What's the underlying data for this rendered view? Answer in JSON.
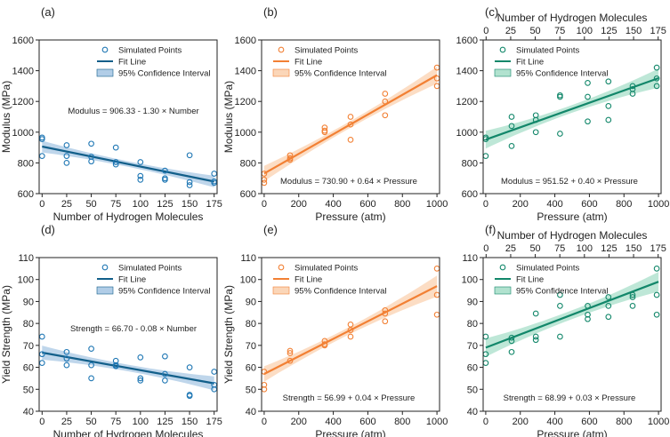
{
  "colors": {
    "blue": "#1f77b4",
    "blue_line": "#125f8a",
    "orange": "#f28034",
    "green": "#12876a",
    "blue_band": "#a9c8e4",
    "orange_band": "#fbd2b0",
    "green_band": "#a8dfca"
  },
  "legend": {
    "points": "Simulated Points",
    "line": "Fit Line",
    "ci": "95% Confidence Interval"
  },
  "chart_data": [
    {
      "panel": "(a)",
      "type": "scatter",
      "color_key": "blue",
      "xlabel": "Number of Hydrogen Molecules",
      "ylabel": "Modulus (MPa)",
      "xlim": [
        -3,
        178
      ],
      "xticks": [
        0,
        25,
        50,
        75,
        100,
        125,
        150,
        175
      ],
      "ylim": [
        600,
        1600
      ],
      "yticks": [
        600,
        800,
        1000,
        1200,
        1400,
        1600
      ],
      "equation": "Modulus = 906.33 - 1.30 × Number",
      "fit": {
        "intercept": 906.33,
        "slope": -1.3,
        "x0": 0,
        "x1": 175
      },
      "ci_half_width": [
        38,
        18,
        38
      ],
      "points": [
        [
          0,
          965
        ],
        [
          0,
          955
        ],
        [
          0,
          845
        ],
        [
          25,
          915
        ],
        [
          25,
          845
        ],
        [
          25,
          800
        ],
        [
          50,
          925
        ],
        [
          50,
          840
        ],
        [
          50,
          810
        ],
        [
          75,
          900
        ],
        [
          75,
          805
        ],
        [
          75,
          790
        ],
        [
          100,
          805
        ],
        [
          100,
          715
        ],
        [
          100,
          690
        ],
        [
          125,
          750
        ],
        [
          125,
          700
        ],
        [
          125,
          690
        ],
        [
          150,
          850
        ],
        [
          150,
          675
        ],
        [
          150,
          655
        ],
        [
          175,
          730
        ],
        [
          175,
          680
        ],
        [
          175,
          670
        ]
      ],
      "legend_pos": "top-right"
    },
    {
      "panel": "(b)",
      "type": "scatter",
      "color_key": "orange",
      "xlabel": "Pressure (atm)",
      "ylabel": "Modulus (MPa)",
      "xlim": [
        -15,
        1015
      ],
      "xticks": [
        0,
        200,
        400,
        600,
        800,
        1000
      ],
      "ylim": [
        600,
        1600
      ],
      "yticks": [
        600,
        800,
        1000,
        1200,
        1400,
        1600
      ],
      "equation": "Modulus = 730.90 + 0.64 × Pressure",
      "fit": {
        "intercept": 730.9,
        "slope": 0.64,
        "x0": 0,
        "x1": 1000
      },
      "ci_half_width": [
        50,
        22,
        55
      ],
      "points": [
        [
          0,
          730
        ],
        [
          0,
          690
        ],
        [
          0,
          670
        ],
        [
          150,
          850
        ],
        [
          150,
          830
        ],
        [
          150,
          820
        ],
        [
          350,
          1030
        ],
        [
          350,
          1010
        ],
        [
          350,
          1000
        ],
        [
          500,
          1100
        ],
        [
          500,
          1050
        ],
        [
          500,
          950
        ],
        [
          700,
          1250
        ],
        [
          700,
          1200
        ],
        [
          700,
          1110
        ],
        [
          1000,
          1420
        ],
        [
          1000,
          1350
        ],
        [
          1000,
          1300
        ]
      ],
      "legend_pos": "top-left"
    },
    {
      "panel": "(c)",
      "type": "scatter",
      "color_key": "green",
      "xlabel": "Pressure (atm)",
      "ylabel": "",
      "x2label": "Number of Hydrogen Molecules",
      "x2ticks": [
        0,
        25,
        50,
        75,
        100,
        125,
        150,
        175
      ],
      "x2lim": [
        -3,
        178
      ],
      "xlim": [
        -15,
        1015
      ],
      "xticks": [
        0,
        200,
        400,
        600,
        800,
        1000
      ],
      "ylim": [
        600,
        1600
      ],
      "yticks": [
        600,
        800,
        1000,
        1200,
        1400,
        1600
      ],
      "equation": "Modulus = 951.52 + 0.40 × Pressure",
      "fit": {
        "intercept": 951.52,
        "slope": 0.4,
        "x0": 0,
        "x1": 1000
      },
      "ci_half_width": [
        58,
        25,
        62
      ],
      "points": [
        [
          0,
          965
        ],
        [
          0,
          955
        ],
        [
          0,
          845
        ],
        [
          150,
          1100
        ],
        [
          150,
          1040
        ],
        [
          150,
          910
        ],
        [
          290,
          1110
        ],
        [
          290,
          1080
        ],
        [
          290,
          1000
        ],
        [
          430,
          1240
        ],
        [
          430,
          1230
        ],
        [
          430,
          990
        ],
        [
          590,
          1320
        ],
        [
          590,
          1230
        ],
        [
          590,
          1070
        ],
        [
          710,
          1330
        ],
        [
          710,
          1170
        ],
        [
          710,
          1080
        ],
        [
          850,
          1300
        ],
        [
          850,
          1280
        ],
        [
          850,
          1250
        ],
        [
          990,
          1420
        ],
        [
          990,
          1350
        ],
        [
          990,
          1300
        ]
      ],
      "legend_pos": "top-left"
    },
    {
      "panel": "(d)",
      "type": "scatter",
      "color_key": "blue",
      "xlabel": "Number of Hydrogen Molecules",
      "ylabel": "Yield Strength (MPa)",
      "xlim": [
        -3,
        178
      ],
      "xticks": [
        0,
        25,
        50,
        75,
        100,
        125,
        150,
        175
      ],
      "ylim": [
        40,
        110
      ],
      "yticks": [
        40,
        50,
        60,
        70,
        80,
        90,
        100,
        110
      ],
      "equation": "Strength = 66.70 - 0.08 × Number",
      "fit": {
        "intercept": 66.7,
        "slope": -0.08,
        "x0": 0,
        "x1": 175
      },
      "ci_half_width": [
        3.2,
        1.5,
        3.2
      ],
      "points": [
        [
          0,
          74
        ],
        [
          0,
          66
        ],
        [
          0,
          62
        ],
        [
          25,
          67
        ],
        [
          25,
          64
        ],
        [
          25,
          61
        ],
        [
          50,
          68.5
        ],
        [
          50,
          61
        ],
        [
          50,
          55
        ],
        [
          75,
          63
        ],
        [
          75,
          61
        ],
        [
          75,
          60.5
        ],
        [
          100,
          64.5
        ],
        [
          100,
          55
        ],
        [
          100,
          54
        ],
        [
          125,
          65
        ],
        [
          125,
          57
        ],
        [
          125,
          54
        ],
        [
          150,
          60
        ],
        [
          150,
          47.5
        ],
        [
          150,
          47
        ],
        [
          175,
          58
        ],
        [
          175,
          52
        ],
        [
          175,
          50
        ]
      ],
      "legend_pos": "top-right"
    },
    {
      "panel": "(e)",
      "type": "scatter",
      "color_key": "orange",
      "xlabel": "Pressure (atm)",
      "ylabel": "Yield Strength (MPa)",
      "xlim": [
        -15,
        1015
      ],
      "xticks": [
        0,
        200,
        400,
        600,
        800,
        1000
      ],
      "ylim": [
        40,
        110
      ],
      "yticks": [
        40,
        50,
        60,
        70,
        80,
        90,
        100,
        110
      ],
      "equation": "Strength = 56.99 + 0.04 × Pressure",
      "fit": {
        "intercept": 56.99,
        "slope": 0.04,
        "x0": 0,
        "x1": 1000
      },
      "ci_half_width": [
        3.5,
        1.7,
        4.8
      ],
      "points": [
        [
          0,
          58
        ],
        [
          0,
          52
        ],
        [
          0,
          50
        ],
        [
          150,
          67.5
        ],
        [
          150,
          66.5
        ],
        [
          150,
          63
        ],
        [
          350,
          72
        ],
        [
          350,
          70.5
        ],
        [
          350,
          70
        ],
        [
          500,
          79.5
        ],
        [
          500,
          77
        ],
        [
          500,
          74
        ],
        [
          700,
          86
        ],
        [
          700,
          84.5
        ],
        [
          700,
          81
        ],
        [
          1000,
          105
        ],
        [
          1000,
          93
        ],
        [
          1000,
          84
        ]
      ],
      "legend_pos": "top-left"
    },
    {
      "panel": "(f)",
      "type": "scatter",
      "color_key": "green",
      "xlabel": "Pressure (atm)",
      "ylabel": "",
      "x2label": "Number of Hydrogen Molecules",
      "x2ticks": [
        0,
        25,
        50,
        75,
        100,
        125,
        150,
        175
      ],
      "x2lim": [
        -3,
        178
      ],
      "xlim": [
        -15,
        1015
      ],
      "xticks": [
        0,
        200,
        400,
        600,
        800,
        1000
      ],
      "ylim": [
        40,
        110
      ],
      "yticks": [
        40,
        50,
        60,
        70,
        80,
        90,
        100,
        110
      ],
      "equation": "Strength = 68.99 + 0.03 × Pressure",
      "fit": {
        "intercept": 68.99,
        "slope": 0.03,
        "x0": 0,
        "x1": 1000
      },
      "ci_half_width": [
        4.2,
        2.0,
        4.5
      ],
      "points": [
        [
          0,
          74
        ],
        [
          0,
          66
        ],
        [
          0,
          62
        ],
        [
          150,
          73.5
        ],
        [
          150,
          72
        ],
        [
          150,
          67
        ],
        [
          290,
          84.5
        ],
        [
          290,
          74
        ],
        [
          290,
          72.5
        ],
        [
          430,
          93
        ],
        [
          430,
          88
        ],
        [
          430,
          74
        ],
        [
          590,
          88
        ],
        [
          590,
          84
        ],
        [
          590,
          82
        ],
        [
          710,
          92
        ],
        [
          710,
          88
        ],
        [
          710,
          83
        ],
        [
          850,
          93
        ],
        [
          850,
          92
        ],
        [
          850,
          88
        ],
        [
          990,
          105
        ],
        [
          990,
          93
        ],
        [
          990,
          84
        ]
      ],
      "legend_pos": "top-left"
    }
  ]
}
